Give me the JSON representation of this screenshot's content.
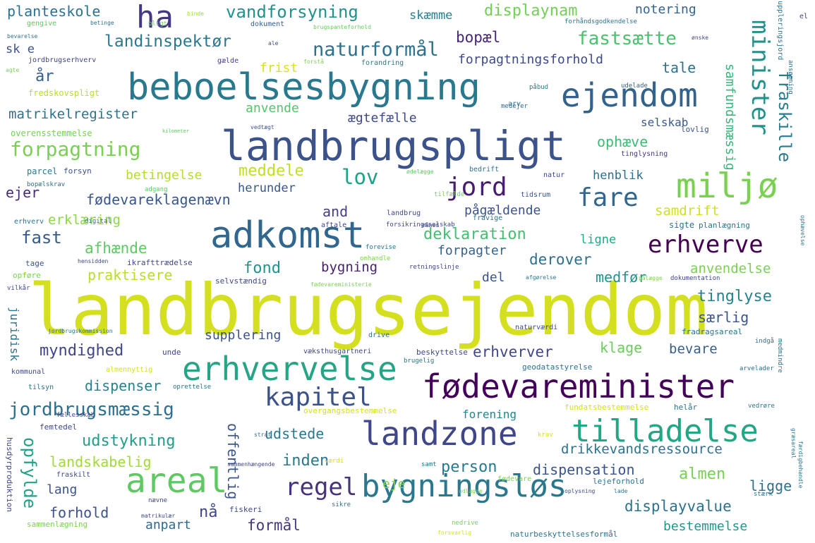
{
  "words": [
    {
      "text": "landbrugsejendom",
      "color": "#d4df1f"
    },
    {
      "text": "landbrugspligt",
      "color": "#3b528b"
    },
    {
      "text": "beboelsesbygning",
      "color": "#2a788e"
    },
    {
      "text": "fødevareminister",
      "color": "#44015a"
    },
    {
      "text": "adkomst",
      "color": "#31678e"
    },
    {
      "text": "erhvervelse",
      "color": "#26a485"
    },
    {
      "text": "bygningsløs",
      "color": "#2a788e"
    },
    {
      "text": "ejendom",
      "color": "#33628d"
    },
    {
      "text": "landzone",
      "color": "#3f4788"
    },
    {
      "text": "tilladelse",
      "color": "#22a784"
    },
    {
      "text": "areal",
      "color": "#5ec962"
    },
    {
      "text": "miljø",
      "color": "#7ad151"
    },
    {
      "text": "ha",
      "color": "#453781"
    },
    {
      "text": "kapitel",
      "color": "#3b528b"
    },
    {
      "text": "regel",
      "color": "#46327e"
    },
    {
      "text": "jord",
      "color": "#481d6f"
    },
    {
      "text": "fare",
      "color": "#31678e"
    },
    {
      "text": "erhverve",
      "color": "#440154"
    },
    {
      "text": "minister",
      "color": "#21918c"
    },
    {
      "text": "forpagtning",
      "color": "#7ad151"
    },
    {
      "text": "jordbrugsmæssig",
      "color": "#2d708e"
    },
    {
      "text": "naturformål",
      "color": "#2c728e"
    },
    {
      "text": "vandforsyning",
      "color": "#21918c"
    },
    {
      "text": "landinspektør",
      "color": "#2a788e"
    },
    {
      "text": "fastsætte",
      "color": "#4ac16d"
    },
    {
      "text": "fraskille",
      "color": "#287c8e"
    },
    {
      "text": "fødevareklagenævn",
      "color": "#39568c"
    },
    {
      "text": "displaynam",
      "color": "#73d056"
    },
    {
      "text": "planteskole",
      "color": "#2c728e"
    },
    {
      "text": "notering",
      "color": "#32648e"
    },
    {
      "text": "skæmme",
      "color": "#277f8e"
    },
    {
      "text": "bopæl",
      "color": "#482576"
    },
    {
      "text": "forpagtningsforhold",
      "color": "#3e4989"
    },
    {
      "text": "tale",
      "color": "#2c728e"
    },
    {
      "text": "matrikelregister",
      "color": "#2c728e"
    },
    {
      "text": "ægtefælle",
      "color": "#3e4989"
    },
    {
      "text": "selskab",
      "color": "#38598c"
    },
    {
      "text": "samfundsmæssig",
      "color": "#35b779"
    },
    {
      "text": "lov",
      "color": "#1fa287"
    },
    {
      "text": "meddele",
      "color": "#c2df23"
    },
    {
      "text": "betingelse",
      "color": "#b5de2b"
    },
    {
      "text": "ejer",
      "color": "#472c7a"
    },
    {
      "text": "herunder",
      "color": "#39568c"
    },
    {
      "text": "henblik",
      "color": "#2e6e8e"
    },
    {
      "text": "ophæve",
      "color": "#3dbc74"
    },
    {
      "text": "anvende",
      "color": "#54c568"
    },
    {
      "text": "frist",
      "color": "#d8e219"
    },
    {
      "text": "år",
      "color": "#355f8d"
    },
    {
      "text": "sk e",
      "color": "#3b528b"
    },
    {
      "text": "and",
      "color": "#433e85"
    },
    {
      "text": "pågældende",
      "color": "#3b528b"
    },
    {
      "text": "samdrift",
      "color": "#d0e11c"
    },
    {
      "text": "erklæring",
      "color": "#8ed645"
    },
    {
      "text": "fast",
      "color": "#375a8c"
    },
    {
      "text": "afhænde",
      "color": "#5ec962"
    },
    {
      "text": "deklaration",
      "color": "#44bf70"
    },
    {
      "text": "ligne",
      "color": "#22a884"
    },
    {
      "text": "forpagter",
      "color": "#34618d"
    },
    {
      "text": "derover",
      "color": "#2e6f8e"
    },
    {
      "text": "fond",
      "color": "#1f958b"
    },
    {
      "text": "bygning",
      "color": "#482173"
    },
    {
      "text": "praktisere",
      "color": "#b8de29"
    },
    {
      "text": "medfør",
      "color": "#21918c"
    },
    {
      "text": "anvendelse",
      "color": "#7ad151"
    },
    {
      "text": "del",
      "color": "#3b528b"
    },
    {
      "text": "tinglyse",
      "color": "#26828e"
    },
    {
      "text": "særlig",
      "color": "#39568c"
    },
    {
      "text": "juridisk",
      "color": "#2c728e"
    },
    {
      "text": "supplering",
      "color": "#3b528b"
    },
    {
      "text": "myndighed",
      "color": "#3f4788"
    },
    {
      "text": "klage",
      "color": "#6ccd5a"
    },
    {
      "text": "erhverver",
      "color": "#3f4788"
    },
    {
      "text": "bevare",
      "color": "#355f8d"
    },
    {
      "text": "dispenser",
      "color": "#26828e"
    },
    {
      "text": "forening",
      "color": "#25858e"
    },
    {
      "text": "udstykning",
      "color": "#1f9e89"
    },
    {
      "text": "udstede",
      "color": "#2a788e"
    },
    {
      "text": "opfylde",
      "color": "#1fa287"
    },
    {
      "text": "offentlig",
      "color": "#3a548c"
    },
    {
      "text": "drikkevandsressource",
      "color": "#2c728e"
    },
    {
      "text": "landskabelig",
      "color": "#a2da37"
    },
    {
      "text": "inden",
      "color": "#2a788e"
    },
    {
      "text": "person",
      "color": "#2a788e"
    },
    {
      "text": "dispensation",
      "color": "#3a548c"
    },
    {
      "text": "almen",
      "color": "#75d054"
    },
    {
      "text": "ligge",
      "color": "#2e6f8e"
    },
    {
      "text": "lang",
      "color": "#3a548c"
    },
    {
      "text": "eje",
      "color": "#7fd34e"
    },
    {
      "text": "forhold",
      "color": "#3b528b"
    },
    {
      "text": "nå",
      "color": "#3f4788"
    },
    {
      "text": "anpart",
      "color": "#31688e"
    },
    {
      "text": "formål",
      "color": "#453781"
    },
    {
      "text": "displayvalue",
      "color": "#2c728e"
    },
    {
      "text": "bestemmelse",
      "color": "#1f968b"
    },
    {
      "text": "gengive",
      "color": "#5cc863"
    },
    {
      "text": "betinge",
      "color": "#2c728e"
    },
    {
      "text": "pligt",
      "color": "#74d055"
    },
    {
      "text": "binde",
      "color": "#a0da39"
    },
    {
      "text": "dokument",
      "color": "#355f8d"
    },
    {
      "text": "brugspanteforhold",
      "color": "#65cb5e"
    },
    {
      "text": "forhåndsgodkendelse",
      "color": "#2c728e"
    },
    {
      "text": "bevarelse",
      "color": "#2c728e"
    },
    {
      "text": "ale",
      "color": "#3f4788"
    },
    {
      "text": "jordbrugserhverv",
      "color": "#3f4788"
    },
    {
      "text": "agte",
      "color": "#7ad151"
    },
    {
      "text": "gælde",
      "color": "#433e85"
    },
    {
      "text": "forstå",
      "color": "#7ad151"
    },
    {
      "text": "forandring",
      "color": "#2a788e"
    },
    {
      "text": "fredskovspligt",
      "color": "#bade28"
    },
    {
      "text": "udelade",
      "color": "#355f8d"
    },
    {
      "text": "påbud",
      "color": "#2a788e"
    },
    {
      "text": "medejer",
      "color": "#31688e"
    },
    {
      "text": "arv",
      "color": "#2c728e"
    },
    {
      "text": "overensstemmelse",
      "color": "#73d056"
    },
    {
      "text": "kilometer",
      "color": "#5ec962"
    },
    {
      "text": "vedtægt",
      "color": "#3b528b"
    },
    {
      "text": "lovlig",
      "color": "#3b528b"
    },
    {
      "text": "tinglysning",
      "color": "#453781"
    },
    {
      "text": "parcel",
      "color": "#2a788e"
    },
    {
      "text": "forsyn",
      "color": "#3b528b"
    },
    {
      "text": "bopælskrav",
      "color": "#2c728e"
    },
    {
      "text": "adgang",
      "color": "#5ec962"
    },
    {
      "text": "bedrift",
      "color": "#2c728e"
    },
    {
      "text": "natur",
      "color": "#3f4788"
    },
    {
      "text": "ødelægge",
      "color": "#5ec962"
    },
    {
      "text": "tidsrum",
      "color": "#3b528b"
    },
    {
      "text": "tilfælde",
      "color": "#7ad151"
    },
    {
      "text": "landbrug",
      "color": "#3f4788"
    },
    {
      "text": "måned",
      "color": "#3f4788"
    },
    {
      "text": "forsikringsselskab",
      "color": "#3f4788"
    },
    {
      "text": "aftale",
      "color": "#3f4788"
    },
    {
      "text": "fravige",
      "color": "#2c728e"
    },
    {
      "text": "sigte",
      "color": "#2c728e"
    },
    {
      "text": "planlægning",
      "color": "#2c728e"
    },
    {
      "text": "erhverv",
      "color": "#2c728e"
    },
    {
      "text": "digital",
      "color": "#2c728e"
    },
    {
      "text": "forevise",
      "color": "#2c728e"
    },
    {
      "text": "omhandle",
      "color": "#7ad151"
    },
    {
      "text": "tage",
      "color": "#3b528b"
    },
    {
      "text": "hensidden",
      "color": "#3f4788"
    },
    {
      "text": "ikrafttrædelse",
      "color": "#3f4788"
    },
    {
      "text": "retningslinje",
      "color": "#3f4788"
    },
    {
      "text": "afgørelse",
      "color": "#2c728e"
    },
    {
      "text": "pålægge",
      "color": "#7ad151"
    },
    {
      "text": "dokumentation",
      "color": "#3f4788"
    },
    {
      "text": "opføre",
      "color": "#7ad151"
    },
    {
      "text": "selvstændig",
      "color": "#3f4788"
    },
    {
      "text": "fødevareministerie",
      "color": "#7ad151"
    },
    {
      "text": "vilkår",
      "color": "#3f4788"
    },
    {
      "text": "jordbrugskommission",
      "color": "#2c728e"
    },
    {
      "text": "drive",
      "color": "#2c728e"
    },
    {
      "text": "naturværdi",
      "color": "#3f4788"
    },
    {
      "text": "fradragsareal",
      "color": "#2c728e"
    },
    {
      "text": "indgå",
      "color": "#2c728e"
    },
    {
      "text": "medmindre",
      "color": "#2c728e"
    },
    {
      "text": "arvelader",
      "color": "#2c728e"
    },
    {
      "text": "unde",
      "color": "#3f4788"
    },
    {
      "text": "væksthusgartneri",
      "color": "#3f4788"
    },
    {
      "text": "beskyttelse",
      "color": "#3f4788"
    },
    {
      "text": "brugelig",
      "color": "#2c728e"
    },
    {
      "text": "kommunal",
      "color": "#3f4788"
    },
    {
      "text": "almennyttig",
      "color": "#d4df1f"
    },
    {
      "text": "geodatastyrelse",
      "color": "#2c728e"
    },
    {
      "text": "tilsyn",
      "color": "#2c728e"
    },
    {
      "text": "oprettelse",
      "color": "#2c728e"
    },
    {
      "text": "overgangsbestemmelse",
      "color": "#d4df1f"
    },
    {
      "text": "fundatsbestemmelse",
      "color": "#d4df1f"
    },
    {
      "text": "helår",
      "color": "#2c728e"
    },
    {
      "text": "vedrøre",
      "color": "#2c728e"
    },
    {
      "text": "femtedel",
      "color": "#3f4788"
    },
    {
      "text": "fællesskab",
      "color": "#3f4788"
    },
    {
      "text": "græsareal",
      "color": "#2c728e"
    },
    {
      "text": "straf",
      "color": "#2c728e"
    },
    {
      "text": "krav",
      "color": "#d4df1f"
    },
    {
      "text": "husdyrproduktion",
      "color": "#3f4788"
    },
    {
      "text": "værdi",
      "color": "#d4df1f"
    },
    {
      "text": "samt",
      "color": "#2c728e"
    },
    {
      "text": "sammenhængende",
      "color": "#3f4788"
    },
    {
      "text": "fraskilt",
      "color": "#3f4788"
    },
    {
      "text": "fødevare",
      "color": "#7ad151"
    },
    {
      "text": "lejeforhold",
      "color": "#2c728e"
    },
    {
      "text": "udlægge",
      "color": "#7ad151"
    },
    {
      "text": "oplysning",
      "color": "#3f4788"
    },
    {
      "text": "lade",
      "color": "#2c728e"
    },
    {
      "text": "stærk",
      "color": "#2c728e"
    },
    {
      "text": "færdigbehandle",
      "color": "#2c728e"
    },
    {
      "text": "nævne",
      "color": "#3f4788"
    },
    {
      "text": "matrikulær",
      "color": "#3f4788"
    },
    {
      "text": "fiskeri",
      "color": "#3f4788"
    },
    {
      "text": "sikre",
      "color": "#2c728e"
    },
    {
      "text": "sammenlægning",
      "color": "#7ad151"
    },
    {
      "text": "nedrive",
      "color": "#7ad151"
    },
    {
      "text": "forsvarlig",
      "color": "#d4df1f"
    },
    {
      "text": "naturbeskyttelsesformål",
      "color": "#2c728e"
    },
    {
      "text": "suppleringsjord",
      "color": "#2c728e"
    },
    {
      "text": "ansøgning",
      "color": "#2c728e"
    },
    {
      "text": "ønske",
      "color": "#3f4788"
    },
    {
      "text": "el",
      "color": "#3f4788"
    },
    {
      "text": "ophævelse",
      "color": "#2c728e"
    }
  ]
}
